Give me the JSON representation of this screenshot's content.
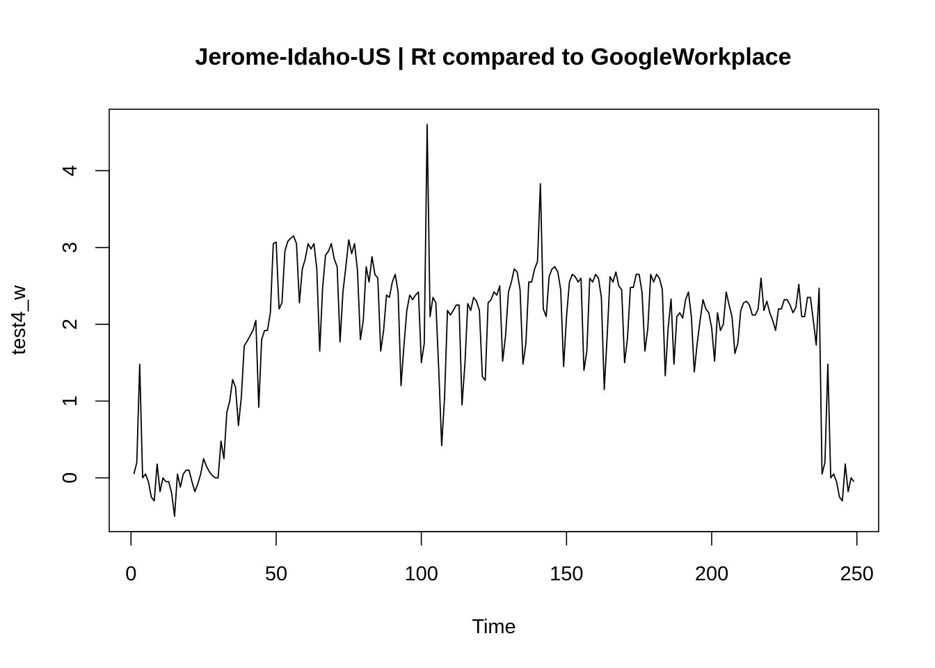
{
  "chart_data": {
    "type": "line",
    "title": "Jerome-Idaho-US | Rt compared to GoogleWorkplace",
    "xlabel": "Time",
    "ylabel": "test4_w",
    "xlim": [
      -7.5,
      257.5
    ],
    "ylim": [
      -0.7,
      4.8
    ],
    "xticks": [
      0,
      50,
      100,
      150,
      200,
      250
    ],
    "yticks": [
      0,
      1,
      2,
      3,
      4
    ],
    "grid": false,
    "series": [
      {
        "color": "#000000",
        "x_start": 1,
        "values": [
          0.05,
          0.2,
          1.48,
          0.0,
          0.05,
          -0.05,
          -0.25,
          -0.3,
          0.18,
          -0.18,
          0.0,
          -0.05,
          -0.05,
          -0.2,
          -0.5,
          0.05,
          -0.12,
          0.05,
          0.1,
          0.1,
          -0.05,
          -0.18,
          -0.08,
          0.05,
          0.25,
          0.15,
          0.08,
          0.03,
          0.0,
          0.0,
          0.48,
          0.25,
          0.85,
          1.0,
          1.28,
          1.18,
          0.68,
          1.05,
          1.72,
          1.78,
          1.85,
          1.92,
          2.05,
          0.92,
          1.8,
          1.92,
          1.92,
          2.15,
          3.05,
          3.07,
          2.2,
          2.28,
          2.95,
          3.08,
          3.12,
          3.15,
          3.05,
          2.28,
          2.72,
          2.85,
          3.05,
          2.98,
          3.05,
          2.72,
          1.65,
          2.48,
          2.9,
          2.95,
          3.05,
          2.85,
          2.75,
          1.77,
          2.42,
          2.75,
          3.1,
          2.92,
          3.05,
          2.7,
          1.8,
          2.05,
          2.75,
          2.55,
          2.88,
          2.65,
          2.6,
          1.65,
          1.92,
          2.38,
          2.35,
          2.55,
          2.65,
          2.42,
          1.2,
          1.72,
          2.18,
          2.38,
          2.32,
          2.38,
          2.42,
          1.5,
          1.75,
          4.6,
          2.1,
          2.35,
          2.28,
          1.4,
          0.42,
          1.05,
          2.18,
          2.12,
          2.18,
          2.25,
          2.25,
          0.95,
          1.48,
          2.27,
          2.18,
          2.35,
          2.3,
          2.18,
          1.32,
          1.27,
          2.28,
          2.32,
          2.42,
          2.38,
          2.5,
          1.52,
          1.85,
          2.42,
          2.55,
          2.72,
          2.68,
          2.45,
          1.48,
          1.75,
          2.55,
          2.55,
          2.72,
          2.82,
          3.83,
          2.2,
          2.1,
          2.62,
          2.72,
          2.75,
          2.68,
          2.45,
          1.45,
          2.1,
          2.55,
          2.65,
          2.62,
          2.55,
          2.6,
          1.4,
          1.65,
          2.6,
          2.55,
          2.65,
          2.6,
          2.35,
          1.15,
          1.85,
          2.62,
          2.55,
          2.68,
          2.5,
          2.45,
          1.5,
          1.82,
          2.48,
          2.48,
          2.65,
          2.65,
          2.42,
          1.65,
          1.95,
          2.65,
          2.55,
          2.65,
          2.6,
          2.45,
          1.33,
          1.95,
          2.33,
          1.48,
          2.1,
          2.15,
          2.08,
          2.32,
          2.42,
          2.1,
          1.38,
          1.75,
          2.05,
          2.32,
          2.2,
          2.15,
          1.95,
          1.52,
          2.15,
          1.92,
          2.0,
          2.42,
          2.25,
          2.1,
          1.62,
          1.75,
          2.18,
          2.28,
          2.3,
          2.25,
          2.12,
          2.12,
          2.2,
          2.6,
          2.18,
          2.3,
          2.15,
          2.05,
          1.92,
          2.2,
          2.2,
          2.32,
          2.32,
          2.25,
          2.15,
          2.22,
          2.52,
          2.1,
          2.1,
          2.35,
          2.35,
          2.05,
          1.73,
          2.47,
          0.05,
          0.2,
          1.48,
          0.0,
          0.05,
          -0.05,
          -0.25,
          -0.3,
          0.18,
          -0.18,
          0.0,
          -0.05
        ]
      }
    ]
  }
}
